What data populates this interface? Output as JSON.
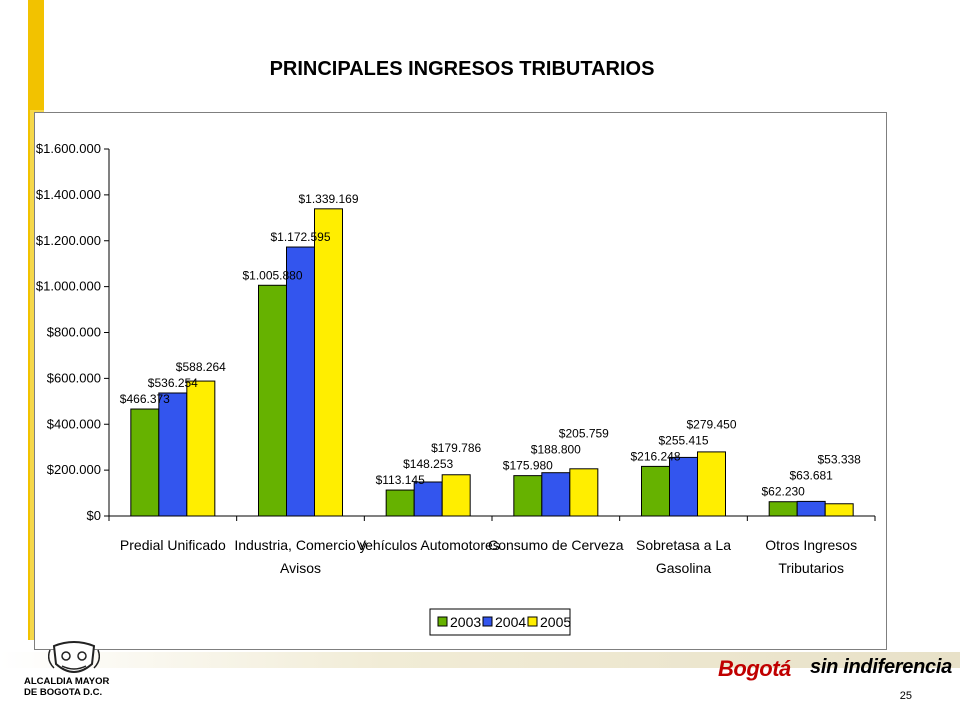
{
  "slide": {
    "title": "PRINCIPALES INGRESOS TRIBUTARIOS",
    "page_number": "25",
    "institution_line1": "ALCALDIA MAYOR",
    "institution_line2": "DE BOGOTA D.C.",
    "brand_part1": "Bogotá",
    "brand_part2": "sin indiferencia",
    "accent_color": "#f2c200",
    "brand_color": "#c00000"
  },
  "chart_data": {
    "type": "bar",
    "title": "",
    "xlabel": "",
    "ylabel": "",
    "ylim": [
      0,
      1600000
    ],
    "yticks": [
      0,
      200000,
      400000,
      600000,
      800000,
      1000000,
      1200000,
      1400000,
      1600000
    ],
    "ytick_labels": [
      "$0",
      "$200.000",
      "$400.000",
      "$600.000",
      "$800.000",
      "$1.000.000",
      "$1.200.000",
      "$1.400.000",
      "$1.600.000"
    ],
    "categories": [
      [
        "Predial Unificado"
      ],
      [
        "Industria, Comercio y",
        "Avisos"
      ],
      [
        "Vehículos Automotores"
      ],
      [
        "Consumo de Cerveza"
      ],
      [
        "Sobretasa a La",
        "Gasolina"
      ],
      [
        "Otros Ingresos",
        "Tributarios"
      ]
    ],
    "series": [
      {
        "name": "2003",
        "color": "#66b200",
        "values": [
          466373,
          1005880,
          113145,
          175980,
          216248,
          62230
        ],
        "labels": [
          "$466.373",
          "$1.005.880",
          "$113.145",
          "$175.980",
          "$216.248",
          "$62.230"
        ]
      },
      {
        "name": "2004",
        "color": "#3355ee",
        "values": [
          536254,
          1172595,
          148253,
          188800,
          255415,
          63681
        ],
        "labels": [
          "$536.254",
          "$1.172.595",
          "$148.253",
          "$188.800",
          "$255.415",
          "$63.681"
        ]
      },
      {
        "name": "2005",
        "color": "#ffee00",
        "values": [
          588264,
          1339169,
          179786,
          205759,
          279450,
          53338
        ],
        "labels": [
          "$588.264",
          "$1.339.169",
          "$179.786",
          "$205.759",
          "$279.450",
          "$53.338"
        ]
      }
    ],
    "grid": false,
    "legend_position": "bottom-center"
  }
}
